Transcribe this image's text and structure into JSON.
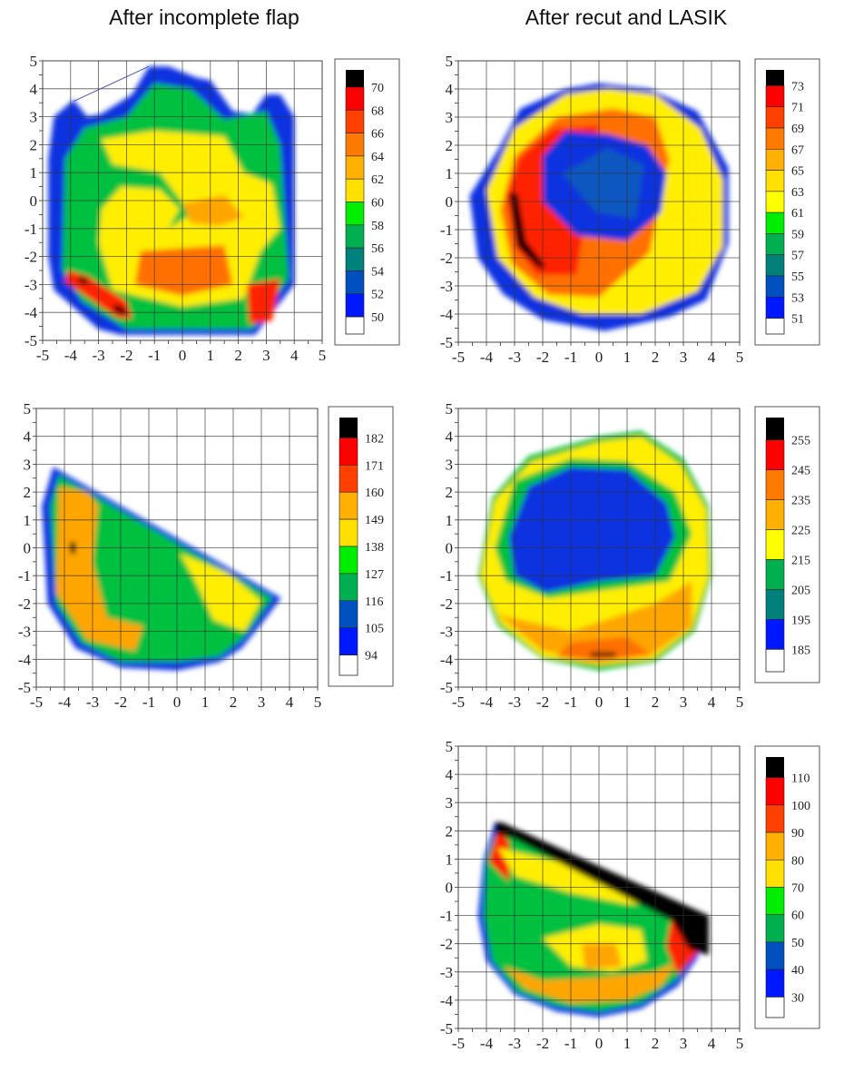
{
  "titles": [
    "After incomplete flap",
    "After recut and LASIK"
  ],
  "chart_data": [
    {
      "type": "heatmap",
      "panel": "top-left",
      "column": "After incomplete flap",
      "xlim": [
        -5,
        5
      ],
      "ylim": [
        -5,
        5
      ],
      "xticks": [
        -5,
        -4,
        -3,
        -2,
        -1,
        0,
        1,
        2,
        3,
        4,
        5
      ],
      "yticks": [
        5,
        4,
        3,
        2,
        1,
        0,
        -1,
        -2,
        -3,
        -4,
        -5
      ],
      "grid": true,
      "colorbar": [
        "70",
        "68",
        "66",
        "64",
        "62",
        "60",
        "58",
        "56",
        "54",
        "52",
        "50"
      ]
    },
    {
      "type": "heatmap",
      "panel": "top-right",
      "column": "After recut and LASIK",
      "xlim": [
        -5,
        5
      ],
      "ylim": [
        -5,
        5
      ],
      "xticks": [
        -5,
        -4,
        -3,
        -2,
        -1,
        0,
        1,
        2,
        3,
        4,
        5
      ],
      "yticks": [
        5,
        4,
        3,
        2,
        1,
        0,
        -1,
        -2,
        -3,
        -4,
        -5
      ],
      "grid": true,
      "colorbar": [
        "73",
        "71",
        "69",
        "67",
        "65",
        "63",
        "61",
        "59",
        "57",
        "55",
        "53",
        "51"
      ]
    },
    {
      "type": "heatmap",
      "panel": "middle-left",
      "column": "After incomplete flap",
      "xlim": [
        -5,
        5
      ],
      "ylim": [
        -5,
        5
      ],
      "xticks": [
        -5,
        -4,
        -3,
        -2,
        -1,
        0,
        1,
        2,
        3,
        4,
        5
      ],
      "yticks": [
        5,
        4,
        3,
        2,
        1,
        0,
        -1,
        -2,
        -3,
        -4,
        -5
      ],
      "grid": true,
      "colorbar": [
        "182",
        "171",
        "160",
        "149",
        "138",
        "127",
        "116",
        "105",
        "94"
      ]
    },
    {
      "type": "heatmap",
      "panel": "middle-right",
      "column": "After recut and LASIK",
      "xlim": [
        -5,
        5
      ],
      "ylim": [
        -5,
        5
      ],
      "xticks": [
        -5,
        -4,
        -3,
        -2,
        -1,
        0,
        1,
        2,
        3,
        4,
        5
      ],
      "yticks": [
        5,
        4,
        3,
        2,
        1,
        0,
        -1,
        -2,
        -3,
        -4,
        -5
      ],
      "grid": true,
      "colorbar": [
        "255",
        "245",
        "235",
        "225",
        "215",
        "205",
        "195",
        "185"
      ]
    },
    {
      "type": "heatmap",
      "panel": "bottom-right",
      "column": "After recut and LASIK",
      "xlim": [
        -5,
        5
      ],
      "ylim": [
        -5,
        5
      ],
      "xticks": [
        -5,
        -4,
        -3,
        -2,
        -1,
        0,
        1,
        2,
        3,
        4,
        5
      ],
      "yticks": [
        5,
        4,
        3,
        2,
        1,
        0,
        -1,
        -2,
        -3,
        -4,
        -5
      ],
      "grid": true,
      "colorbar": [
        "110",
        "100",
        "90",
        "80",
        "70",
        "60",
        "50",
        "40",
        "30"
      ]
    }
  ]
}
